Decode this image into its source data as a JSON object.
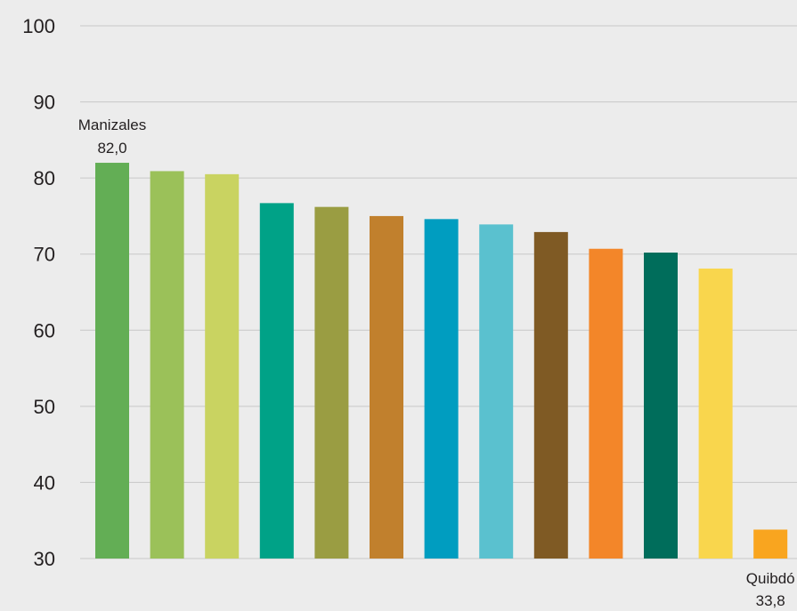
{
  "chart_data": {
    "type": "bar",
    "title": "",
    "xlabel": "",
    "ylabel": "",
    "ylim": [
      30,
      100
    ],
    "yticks": [
      30,
      40,
      50,
      60,
      70,
      80,
      90,
      100
    ],
    "grid": true,
    "legend": "none",
    "values": [
      82.0,
      80.9,
      80.5,
      76.7,
      76.2,
      75.0,
      74.6,
      73.9,
      72.9,
      70.7,
      70.2,
      68.1,
      33.8
    ],
    "colors": [
      "#63ae55",
      "#9bc159",
      "#c9d361",
      "#00a287",
      "#9a9d42",
      "#c1802d",
      "#009dc0",
      "#5ac1cf",
      "#7f5a24",
      "#f38629",
      "#006d5b",
      "#f9d64d",
      "#f9a51f"
    ],
    "annotations": [
      {
        "bar_index": 0,
        "name": "Manizales",
        "value_text": "82,0",
        "position": "above"
      },
      {
        "bar_index": 12,
        "name": "Quibdó",
        "value_text": "33,8",
        "position": "below"
      }
    ]
  }
}
